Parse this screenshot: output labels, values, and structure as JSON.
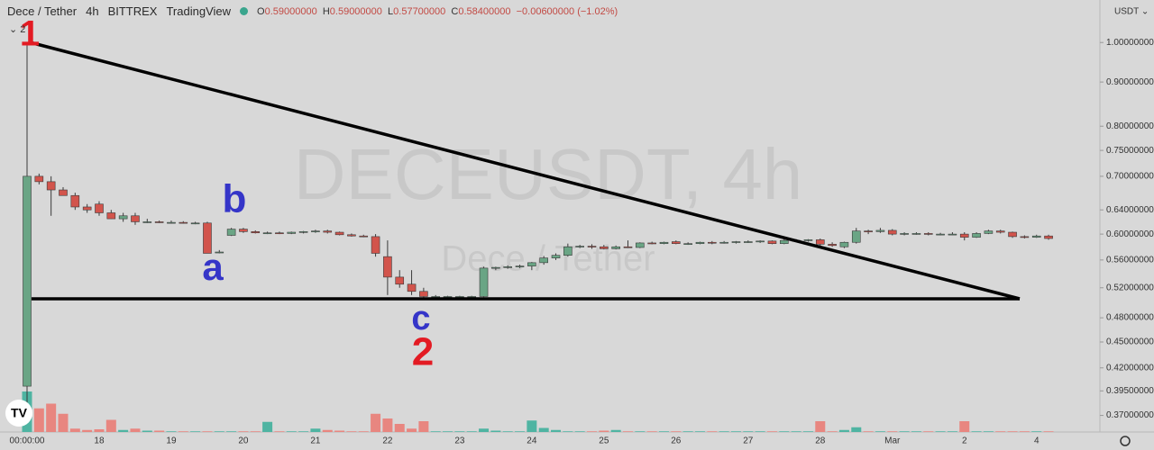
{
  "header": {
    "symbol": "Dece / Tether",
    "interval": "4h",
    "exchange": "BITTREX",
    "source": "TradingView",
    "ohlc": [
      {
        "label": "O",
        "value": "0.59000000"
      },
      {
        "label": "H",
        "value": "0.59000000"
      },
      {
        "label": "L",
        "value": "0.57700000"
      },
      {
        "label": "C",
        "value": "0.58400000"
      }
    ],
    "change": "−0.00600000 (−1.02%)"
  },
  "currency": "USDT ⌄",
  "indicator_count": "⌄ 2",
  "watermark": {
    "symbol": "DECEUSDT, 4h",
    "name": "Dece / Tether"
  },
  "chart_data": {
    "type": "candlestick",
    "log_scale": true,
    "up_color": "#6aa585",
    "down_color": "#d2544c",
    "volume_up_color": "#4fb4a2",
    "volume_down_color": "#e88680",
    "ylim": [
      0.354,
      1.12
    ],
    "yticks": [
      {
        "value": 1.0,
        "label": "1.00000000"
      },
      {
        "value": 0.9,
        "label": "0.90000000"
      },
      {
        "value": 0.8,
        "label": "0.80000000"
      },
      {
        "value": 0.75,
        "label": "0.75000000"
      },
      {
        "value": 0.7,
        "label": "0.70000000"
      },
      {
        "value": 0.64,
        "label": "0.64000000"
      },
      {
        "value": 0.6,
        "label": "0.60000000"
      },
      {
        "value": 0.56,
        "label": "0.56000000"
      },
      {
        "value": 0.52,
        "label": "0.52000000"
      },
      {
        "value": 0.48,
        "label": "0.48000000"
      },
      {
        "value": 0.45,
        "label": "0.45000000"
      },
      {
        "value": 0.42,
        "label": "0.42000000"
      },
      {
        "value": 0.395,
        "label": "0.39500000"
      },
      {
        "value": 0.37,
        "label": "0.37000000"
      }
    ],
    "categories": [
      "00:00:00",
      null,
      null,
      null,
      null,
      null,
      "18",
      null,
      null,
      null,
      null,
      null,
      "19",
      null,
      null,
      null,
      null,
      null,
      "20",
      null,
      null,
      null,
      null,
      null,
      "21",
      null,
      null,
      null,
      null,
      null,
      "22",
      null,
      null,
      null,
      null,
      null,
      "23",
      null,
      null,
      null,
      null,
      null,
      "24",
      null,
      null,
      null,
      null,
      null,
      "25",
      null,
      null,
      null,
      null,
      null,
      "26",
      null,
      null,
      null,
      null,
      null,
      "27",
      null,
      null,
      null,
      null,
      null,
      "28",
      null,
      null,
      null,
      null,
      null,
      "Mar",
      null,
      null,
      null,
      null,
      null,
      "2",
      null,
      null,
      null,
      null,
      null,
      "4",
      null
    ],
    "open": [
      0.4,
      0.7,
      0.69,
      0.675,
      0.665,
      0.645,
      0.65,
      0.635,
      0.625,
      0.63,
      0.62,
      0.62,
      0.619,
      0.619,
      0.618,
      0.618,
      0.572,
      0.598,
      0.608,
      0.604,
      0.602,
      0.602,
      0.601,
      0.603,
      0.604,
      0.605,
      0.603,
      0.599,
      0.597,
      0.596,
      0.565,
      0.535,
      0.525,
      0.515,
      0.508,
      0.508,
      0.508,
      0.508,
      0.508,
      0.548,
      0.549,
      0.55,
      0.551,
      0.556,
      0.563,
      0.567,
      0.58,
      0.581,
      0.58,
      0.577,
      0.58,
      0.579,
      0.586,
      0.585,
      0.588,
      0.585,
      0.585,
      0.587,
      0.586,
      0.587,
      0.588,
      0.588,
      0.589,
      0.585,
      0.59,
      0.59,
      0.591,
      0.584,
      0.58,
      0.587,
      0.605,
      0.604,
      0.606,
      0.6,
      0.601,
      0.601,
      0.6,
      0.6,
      0.6,
      0.595,
      0.601,
      0.605,
      0.603,
      0.596,
      0.595,
      0.597
    ],
    "high": [
      1.0,
      0.705,
      0.7,
      0.68,
      0.67,
      0.65,
      0.655,
      0.64,
      0.635,
      0.635,
      0.625,
      0.622,
      0.622,
      0.621,
      0.62,
      0.62,
      0.575,
      0.61,
      0.61,
      0.606,
      0.604,
      0.604,
      0.604,
      0.605,
      0.607,
      0.607,
      0.604,
      0.601,
      0.599,
      0.6,
      0.59,
      0.545,
      0.545,
      0.52,
      0.51,
      0.509,
      0.509,
      0.509,
      0.55,
      0.55,
      0.552,
      0.553,
      0.557,
      0.566,
      0.57,
      0.585,
      0.583,
      0.584,
      0.583,
      0.582,
      0.59,
      0.587,
      0.588,
      0.588,
      0.59,
      0.587,
      0.588,
      0.589,
      0.589,
      0.589,
      0.59,
      0.59,
      0.59,
      0.592,
      0.592,
      0.592,
      0.593,
      0.587,
      0.588,
      0.61,
      0.607,
      0.61,
      0.608,
      0.603,
      0.603,
      0.603,
      0.602,
      0.603,
      0.603,
      0.603,
      0.607,
      0.607,
      0.604,
      0.598,
      0.599,
      0.599
    ],
    "low": [
      0.37,
      0.685,
      0.63,
      0.665,
      0.64,
      0.635,
      0.63,
      0.625,
      0.62,
      0.615,
      0.618,
      0.618,
      0.617,
      0.617,
      0.616,
      0.57,
      0.57,
      0.597,
      0.602,
      0.601,
      0.6,
      0.6,
      0.6,
      0.601,
      0.602,
      0.601,
      0.598,
      0.596,
      0.595,
      0.565,
      0.51,
      0.52,
      0.51,
      0.505,
      0.506,
      0.507,
      0.507,
      0.507,
      0.507,
      0.545,
      0.547,
      0.548,
      0.545,
      0.553,
      0.56,
      0.565,
      0.578,
      0.577,
      0.576,
      0.576,
      0.578,
      0.578,
      0.584,
      0.584,
      0.584,
      0.583,
      0.584,
      0.584,
      0.585,
      0.585,
      0.586,
      0.586,
      0.584,
      0.584,
      0.588,
      0.588,
      0.578,
      0.58,
      0.578,
      0.585,
      0.6,
      0.602,
      0.598,
      0.598,
      0.599,
      0.598,
      0.598,
      0.599,
      0.59,
      0.594,
      0.6,
      0.601,
      0.594,
      0.593,
      0.594,
      0.591
    ],
    "close": [
      0.7,
      0.69,
      0.675,
      0.665,
      0.645,
      0.64,
      0.635,
      0.625,
      0.63,
      0.62,
      0.62,
      0.619,
      0.619,
      0.618,
      0.618,
      0.57,
      0.572,
      0.608,
      0.604,
      0.602,
      0.602,
      0.601,
      0.603,
      0.604,
      0.605,
      0.603,
      0.599,
      0.597,
      0.596,
      0.57,
      0.535,
      0.525,
      0.515,
      0.508,
      0.508,
      0.508,
      0.508,
      0.508,
      0.548,
      0.549,
      0.55,
      0.551,
      0.556,
      0.563,
      0.567,
      0.58,
      0.581,
      0.58,
      0.577,
      0.58,
      0.579,
      0.586,
      0.585,
      0.587,
      0.585,
      0.585,
      0.587,
      0.586,
      0.587,
      0.588,
      0.588,
      0.589,
      0.585,
      0.59,
      0.59,
      0.591,
      0.584,
      0.582,
      0.587,
      0.605,
      0.604,
      0.606,
      0.6,
      0.601,
      0.601,
      0.6,
      0.6,
      0.6,
      0.595,
      0.601,
      0.605,
      0.603,
      0.596,
      0.595,
      0.597,
      0.593
    ],
    "volume": [
      60,
      35,
      42,
      27,
      5,
      3,
      4,
      18,
      3,
      5,
      2,
      2,
      1,
      1,
      1,
      1,
      1,
      1,
      1,
      1,
      15,
      1,
      1,
      1,
      5,
      3,
      2,
      1,
      1,
      27,
      20,
      12,
      5,
      16,
      1,
      1,
      1,
      1,
      5,
      2,
      1,
      1,
      17,
      6,
      3,
      1,
      1,
      1,
      2,
      3,
      1,
      1,
      1,
      1,
      1,
      1,
      1,
      1,
      1,
      1,
      1,
      1,
      1,
      1,
      1,
      1,
      16,
      1,
      3,
      7,
      1,
      1,
      1,
      1,
      1,
      1,
      1,
      1,
      16,
      1,
      1,
      1,
      1,
      1,
      1,
      1
    ],
    "annotations": [
      {
        "text": "1",
        "color": "#e31b23"
      },
      {
        "text": "a",
        "color": "#3535c8"
      },
      {
        "text": "b",
        "color": "#3535c8"
      },
      {
        "text": "c",
        "color": "#3535c8"
      },
      {
        "text": "2",
        "color": "#e31b23"
      }
    ]
  }
}
